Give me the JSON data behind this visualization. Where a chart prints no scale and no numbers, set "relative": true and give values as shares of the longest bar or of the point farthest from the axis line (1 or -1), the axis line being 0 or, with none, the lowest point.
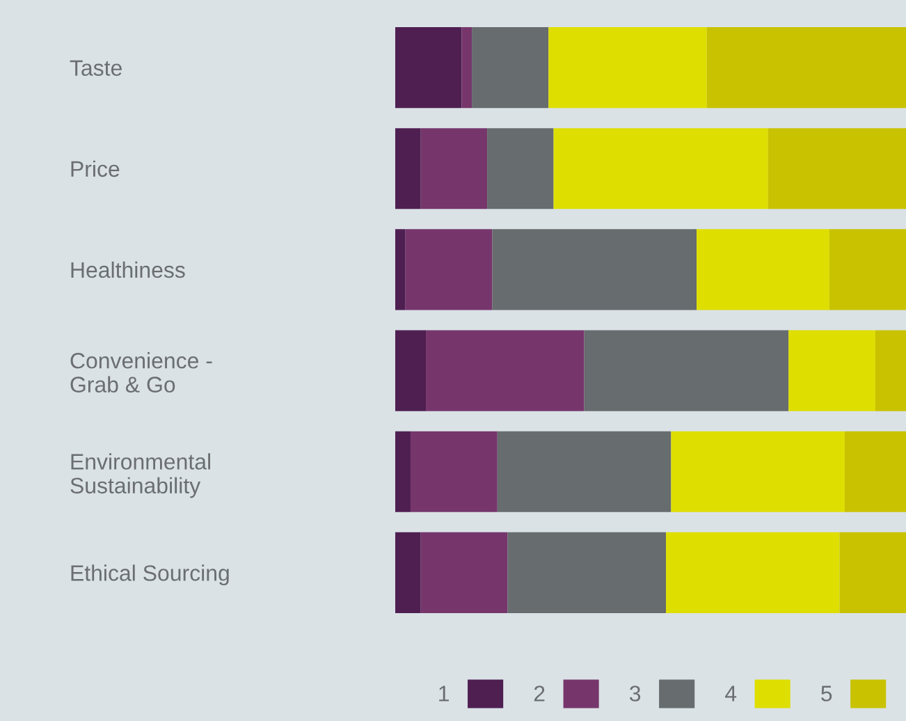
{
  "chart_data": {
    "type": "bar",
    "orientation": "horizontal",
    "stacked": true,
    "relative": true,
    "legend": "bottom",
    "grid": false,
    "categories": [
      "Taste",
      "Price",
      "Healthiness",
      "Convenience -\nGrab & Go",
      "Environmental\nSustainability",
      "Ethical Sourcing"
    ],
    "series": [
      {
        "name": "1",
        "color": "#4f1f52",
        "values": [
          0.13,
          0.05,
          0.02,
          0.06,
          0.03,
          0.05
        ]
      },
      {
        "name": "2",
        "color": "#76366c",
        "values": [
          0.02,
          0.13,
          0.17,
          0.31,
          0.17,
          0.17
        ]
      },
      {
        "name": "3",
        "color": "#676c6e",
        "values": [
          0.15,
          0.13,
          0.4,
          0.4,
          0.34,
          0.31
        ]
      },
      {
        "name": "4",
        "color": "#dede00",
        "values": [
          0.31,
          0.42,
          0.26,
          0.17,
          0.34,
          0.34
        ]
      },
      {
        "name": "5",
        "color": "#c8c200",
        "values": [
          0.39,
          0.27,
          0.15,
          0.06,
          0.12,
          0.13
        ]
      }
    ]
  }
}
